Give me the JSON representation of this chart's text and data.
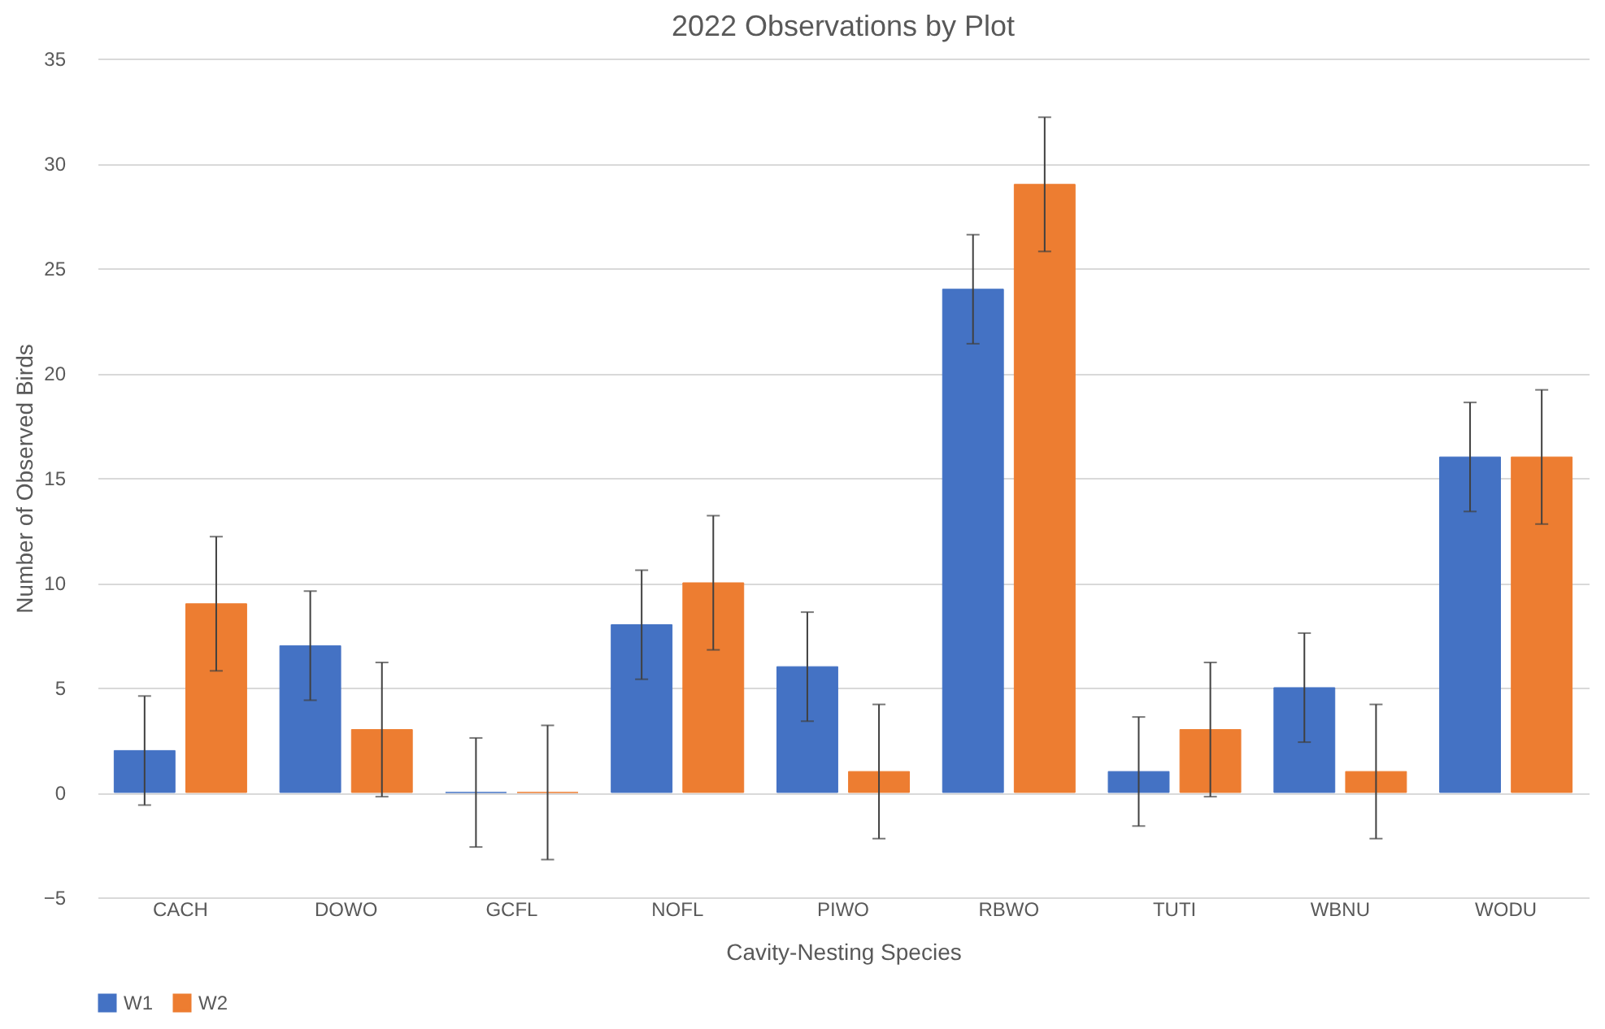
{
  "chart_data": {
    "type": "bar",
    "title": "2022 Observations by Plot",
    "xlabel": "Cavity-Nesting Species",
    "ylabel": "Number of Observed Birds",
    "categories": [
      "CACH",
      "DOWO",
      "GCFL",
      "NOFL",
      "PIWO",
      "RBWO",
      "TUTI",
      "WBNU",
      "WODU"
    ],
    "series": [
      {
        "name": "W1",
        "color": "#4472c4",
        "values": [
          2,
          7,
          0,
          8,
          6,
          24,
          1,
          5,
          16
        ],
        "errors": [
          2.6,
          2.6,
          2.6,
          2.6,
          2.6,
          2.6,
          2.6,
          2.6,
          2.6
        ]
      },
      {
        "name": "W2",
        "color": "#ed7d31",
        "values": [
          9,
          3,
          0,
          10,
          1,
          29,
          3,
          1,
          16
        ],
        "errors": [
          3.2,
          3.2,
          3.2,
          3.2,
          3.2,
          3.2,
          3.2,
          3.2,
          3.2
        ]
      }
    ],
    "ylim": [
      -5,
      35
    ],
    "yticks": [
      -5,
      0,
      5,
      10,
      15,
      20,
      25,
      30,
      35
    ],
    "grid": "y",
    "legend": "bottom"
  }
}
